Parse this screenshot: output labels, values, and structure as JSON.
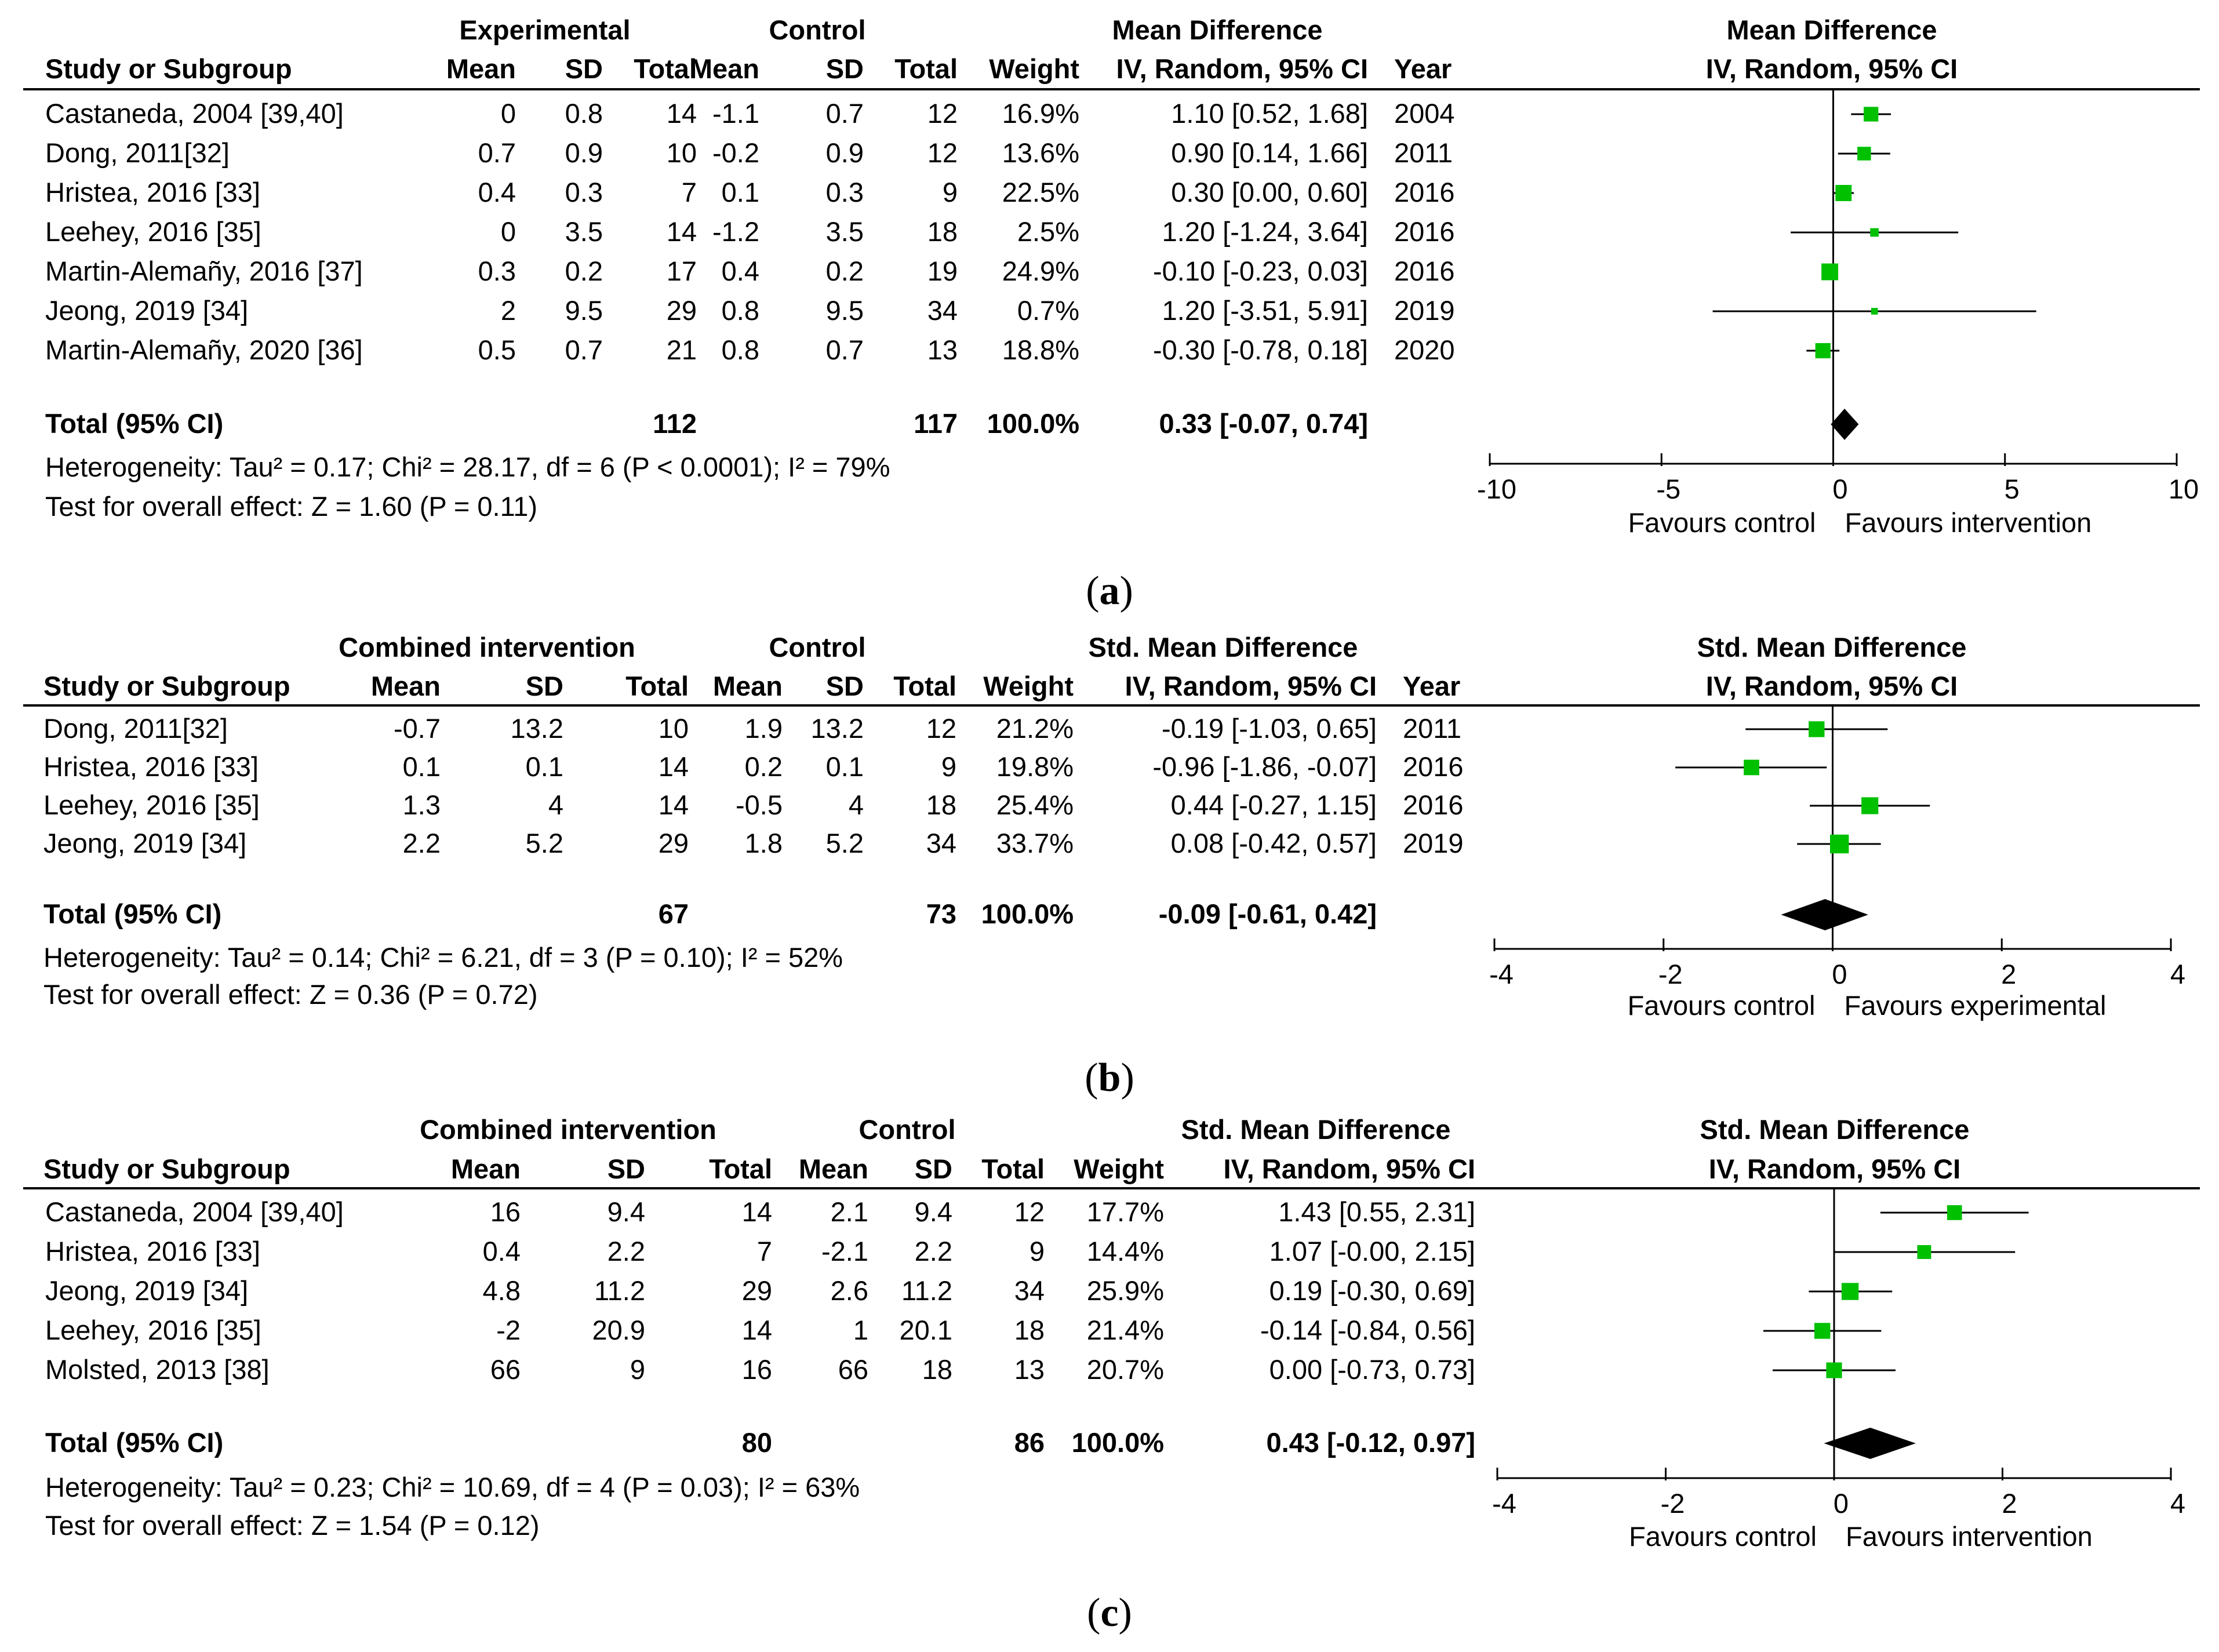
{
  "colors": {
    "marker": "#00c000",
    "line": "#000000",
    "diamond": "#000000"
  },
  "panels": [
    {
      "caption": "a",
      "groups": {
        "exp": "Experimental",
        "ctl": "Control",
        "effect": "Mean Difference",
        "plot": "Mean Difference"
      },
      "headers": {
        "study": "Study or Subgroup",
        "mean": "Mean",
        "sd": "SD",
        "total": "Total",
        "weight": "Weight",
        "ci": "IV, Random, 95% CI",
        "year": "Year",
        "plot": "IV, Random, 95% CI"
      },
      "rows": [
        {
          "study": "Castaneda, 2004 [39,40]",
          "em": "0",
          "esd": "0.8",
          "en": "14",
          "cm": "-1.1",
          "csd": "0.7",
          "cn": "12",
          "weight": "16.9%",
          "ci": "1.10 [0.52, 1.68]",
          "year": "2004"
        },
        {
          "study": "Dong, 2011[32]",
          "em": "0.7",
          "esd": "0.9",
          "en": "10",
          "cm": "-0.2",
          "csd": "0.9",
          "cn": "12",
          "weight": "13.6%",
          "ci": "0.90 [0.14, 1.66]",
          "year": "2011"
        },
        {
          "study": "Hristea, 2016 [33]",
          "em": "0.4",
          "esd": "0.3",
          "en": "7",
          "cm": "0.1",
          "csd": "0.3",
          "cn": "9",
          "weight": "22.5%",
          "ci": "0.30 [0.00, 0.60]",
          "year": "2016"
        },
        {
          "study": "Leehey, 2016 [35]",
          "em": "0",
          "esd": "3.5",
          "en": "14",
          "cm": "-1.2",
          "csd": "3.5",
          "cn": "18",
          "weight": "2.5%",
          "ci": "1.20 [-1.24, 3.64]",
          "year": "2016"
        },
        {
          "study": "Martin-Alemañy, 2016 [37]",
          "em": "0.3",
          "esd": "0.2",
          "en": "17",
          "cm": "0.4",
          "csd": "0.2",
          "cn": "19",
          "weight": "24.9%",
          "ci": "-0.10 [-0.23, 0.03]",
          "year": "2016"
        },
        {
          "study": "Jeong, 2019 [34]",
          "em": "2",
          "esd": "9.5",
          "en": "29",
          "cm": "0.8",
          "csd": "9.5",
          "cn": "34",
          "weight": "0.7%",
          "ci": "1.20 [-3.51, 5.91]",
          "year": "2019"
        },
        {
          "study": "Martin-Alemañy, 2020 [36]",
          "em": "0.5",
          "esd": "0.7",
          "en": "21",
          "cm": "0.8",
          "csd": "0.7",
          "cn": "13",
          "weight": "18.8%",
          "ci": "-0.30 [-0.78, 0.18]",
          "year": "2020"
        }
      ],
      "total": {
        "label": "Total (95% CI)",
        "en": "112",
        "cn": "117",
        "weight": "100.0%",
        "ci": "0.33 [-0.07, 0.74]"
      },
      "heterogeneity": "Heterogeneity: Tau² = 0.17; Chi² = 28.17, df = 6 (P < 0.0001); I² = 79%",
      "overall": "Test for overall effect: Z = 1.60 (P = 0.11)",
      "axis_ticks": [
        "-10",
        "-5",
        "0",
        "5",
        "10"
      ],
      "favours_left": "Favours control",
      "favours_right": "Favours intervention"
    },
    {
      "caption": "b",
      "groups": {
        "exp": "Combined intervention",
        "ctl": "Control",
        "effect": "Std. Mean Difference",
        "plot": "Std. Mean Difference"
      },
      "headers": {
        "study": "Study or Subgroup",
        "mean": "Mean",
        "sd": "SD",
        "total": "Total",
        "weight": "Weight",
        "ci": "IV, Random, 95% CI",
        "year": "Year",
        "plot": "IV, Random, 95% CI"
      },
      "rows": [
        {
          "study": "Dong, 2011[32]",
          "em": "-0.7",
          "esd": "13.2",
          "en": "10",
          "cm": "1.9",
          "csd": "13.2",
          "cn": "12",
          "weight": "21.2%",
          "ci": "-0.19 [-1.03, 0.65]",
          "year": "2011"
        },
        {
          "study": "Hristea, 2016 [33]",
          "em": "0.1",
          "esd": "0.1",
          "en": "14",
          "cm": "0.2",
          "csd": "0.1",
          "cn": "9",
          "weight": "19.8%",
          "ci": "-0.96 [-1.86, -0.07]",
          "year": "2016"
        },
        {
          "study": "Leehey, 2016 [35]",
          "em": "1.3",
          "esd": "4",
          "en": "14",
          "cm": "-0.5",
          "csd": "4",
          "cn": "18",
          "weight": "25.4%",
          "ci": "0.44 [-0.27, 1.15]",
          "year": "2016"
        },
        {
          "study": "Jeong, 2019 [34]",
          "em": "2.2",
          "esd": "5.2",
          "en": "29",
          "cm": "1.8",
          "csd": "5.2",
          "cn": "34",
          "weight": "33.7%",
          "ci": "0.08 [-0.42, 0.57]",
          "year": "2019"
        }
      ],
      "total": {
        "label": "Total (95% CI)",
        "en": "67",
        "cn": "73",
        "weight": "100.0%",
        "ci": "-0.09 [-0.61, 0.42]"
      },
      "heterogeneity": "Heterogeneity: Tau² = 0.14; Chi² = 6.21, df = 3 (P = 0.10); I² = 52%",
      "overall": "Test for overall effect: Z = 0.36 (P = 0.72)",
      "axis_ticks": [
        "-4",
        "-2",
        "0",
        "2",
        "4"
      ],
      "favours_left": "Favours control",
      "favours_right": "Favours experimental"
    },
    {
      "caption": "c",
      "groups": {
        "exp": "Combined intervention",
        "ctl": "Control",
        "effect": "Std. Mean Difference",
        "plot": "Std. Mean Difference"
      },
      "headers": {
        "study": "Study or Subgroup",
        "mean": "Mean",
        "sd": "SD",
        "total": "Total",
        "weight": "Weight",
        "ci": "IV, Random, 95% CI",
        "plot": "IV, Random, 95% CI"
      },
      "rows": [
        {
          "study": "Castaneda, 2004 [39,40]",
          "em": "16",
          "esd": "9.4",
          "en": "14",
          "cm": "2.1",
          "csd": "9.4",
          "cn": "12",
          "weight": "17.7%",
          "ci": "1.43 [0.55, 2.31]"
        },
        {
          "study": "Hristea, 2016 [33]",
          "em": "0.4",
          "esd": "2.2",
          "en": "7",
          "cm": "-2.1",
          "csd": "2.2",
          "cn": "9",
          "weight": "14.4%",
          "ci": "1.07 [-0.00, 2.15]"
        },
        {
          "study": "Jeong, 2019 [34]",
          "em": "4.8",
          "esd": "11.2",
          "en": "29",
          "cm": "2.6",
          "csd": "11.2",
          "cn": "34",
          "weight": "25.9%",
          "ci": "0.19 [-0.30, 0.69]"
        },
        {
          "study": "Leehey, 2016 [35]",
          "em": "-2",
          "esd": "20.9",
          "en": "14",
          "cm": "1",
          "csd": "20.1",
          "cn": "18",
          "weight": "21.4%",
          "ci": "-0.14 [-0.84, 0.56]"
        },
        {
          "study": "Molsted, 2013 [38]",
          "em": "66",
          "esd": "9",
          "en": "16",
          "cm": "66",
          "csd": "18",
          "cn": "13",
          "weight": "20.7%",
          "ci": "0.00 [-0.73, 0.73]"
        }
      ],
      "total": {
        "label": "Total (95% CI)",
        "en": "80",
        "cn": "86",
        "weight": "100.0%",
        "ci": "0.43 [-0.12, 0.97]"
      },
      "heterogeneity": "Heterogeneity: Tau² = 0.23; Chi² = 10.69, df = 4 (P = 0.03); I² = 63%",
      "overall": "Test for overall effect: Z = 1.54 (P = 0.12)",
      "axis_ticks": [
        "-4",
        "-2",
        "0",
        "2",
        "4"
      ],
      "favours_left": "Favours control",
      "favours_right": "Favours intervention"
    }
  ],
  "chart_data": [
    {
      "type": "forest",
      "title": "(a) Mean Difference, IV, Random, 95% CI",
      "xlim": [
        -10,
        10
      ],
      "points": [
        {
          "label": "Castaneda, 2004 [39,40]",
          "est": 1.1,
          "lo": 0.52,
          "hi": 1.68,
          "weight": 16.9
        },
        {
          "label": "Dong, 2011[32]",
          "est": 0.9,
          "lo": 0.14,
          "hi": 1.66,
          "weight": 13.6
        },
        {
          "label": "Hristea, 2016 [33]",
          "est": 0.3,
          "lo": 0.0,
          "hi": 0.6,
          "weight": 22.5
        },
        {
          "label": "Leehey, 2016 [35]",
          "est": 1.2,
          "lo": -1.24,
          "hi": 3.64,
          "weight": 2.5
        },
        {
          "label": "Martin-Alemañy, 2016 [37]",
          "est": -0.1,
          "lo": -0.23,
          "hi": 0.03,
          "weight": 24.9
        },
        {
          "label": "Jeong, 2019 [34]",
          "est": 1.2,
          "lo": -3.51,
          "hi": 5.91,
          "weight": 0.7
        },
        {
          "label": "Martin-Alemañy, 2020 [36]",
          "est": -0.3,
          "lo": -0.78,
          "hi": 0.18,
          "weight": 18.8
        }
      ],
      "pooled": {
        "est": 0.33,
        "lo": -0.07,
        "hi": 0.74
      }
    },
    {
      "type": "forest",
      "title": "(b) Std. Mean Difference, IV, Random, 95% CI",
      "xlim": [
        -4,
        4
      ],
      "points": [
        {
          "label": "Dong, 2011[32]",
          "est": -0.19,
          "lo": -1.03,
          "hi": 0.65,
          "weight": 21.2
        },
        {
          "label": "Hristea, 2016 [33]",
          "est": -0.96,
          "lo": -1.86,
          "hi": -0.07,
          "weight": 19.8
        },
        {
          "label": "Leehey, 2016 [35]",
          "est": 0.44,
          "lo": -0.27,
          "hi": 1.15,
          "weight": 25.4
        },
        {
          "label": "Jeong, 2019 [34]",
          "est": 0.08,
          "lo": -0.42,
          "hi": 0.57,
          "weight": 33.7
        }
      ],
      "pooled": {
        "est": -0.09,
        "lo": -0.61,
        "hi": 0.42
      }
    },
    {
      "type": "forest",
      "title": "(c) Std. Mean Difference, IV, Random, 95% CI",
      "xlim": [
        -4,
        4
      ],
      "points": [
        {
          "label": "Castaneda, 2004 [39,40]",
          "est": 1.43,
          "lo": 0.55,
          "hi": 2.31,
          "weight": 17.7
        },
        {
          "label": "Hristea, 2016 [33]",
          "est": 1.07,
          "lo": -0.0,
          "hi": 2.15,
          "weight": 14.4
        },
        {
          "label": "Jeong, 2019 [34]",
          "est": 0.19,
          "lo": -0.3,
          "hi": 0.69,
          "weight": 25.9
        },
        {
          "label": "Leehey, 2016 [35]",
          "est": -0.14,
          "lo": -0.84,
          "hi": 0.56,
          "weight": 21.4
        },
        {
          "label": "Molsted, 2013 [38]",
          "est": 0.0,
          "lo": -0.73,
          "hi": 0.73,
          "weight": 20.7
        }
      ],
      "pooled": {
        "est": 0.43,
        "lo": -0.12,
        "hi": 0.97
      }
    }
  ]
}
